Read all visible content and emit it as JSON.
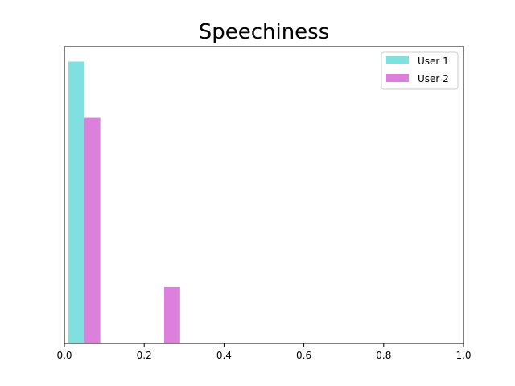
{
  "chart_data": {
    "type": "bar",
    "title": "Speechiness",
    "xlabel": "",
    "ylabel": "",
    "xlim": [
      0.0,
      1.0
    ],
    "xticks": [
      "0.0",
      "0.2",
      "0.4",
      "0.6",
      "0.8",
      "1.0"
    ],
    "y_axis_visible": false,
    "ylim": [
      0,
      1.0
    ],
    "grid": false,
    "legend_position": "top-right",
    "bin_width": 0.04,
    "series": [
      {
        "name": "User 1",
        "color": "#80DFDF",
        "bars": [
          {
            "x": 0.01,
            "value": 0.95
          }
        ]
      },
      {
        "name": "User 2",
        "color": "#DD80DD",
        "bars": [
          {
            "x": 0.05,
            "value": 0.76
          },
          {
            "x": 0.25,
            "value": 0.19
          }
        ]
      }
    ]
  }
}
